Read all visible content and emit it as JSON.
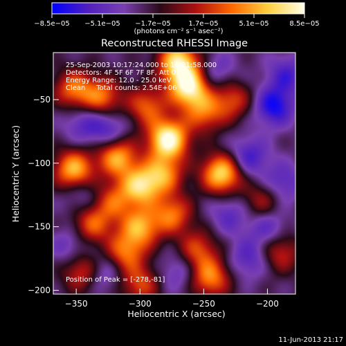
{
  "chart_data": {
    "type": "heatmap",
    "title": "Reconstructed RHESSI Image",
    "xlabel": "Heliocentric X (arcsec)",
    "ylabel": "Heliocentric Y (arcsec)",
    "xlim": [
      -368,
      -178
    ],
    "ylim": [
      -203,
      -13
    ],
    "x_ticks": [
      -350,
      -300,
      -250,
      -200
    ],
    "y_ticks": [
      -50,
      -100,
      -150,
      -200
    ],
    "x_tick_labels": [
      "−350",
      "−300",
      "−250",
      "−200"
    ],
    "y_tick_labels": [
      "−50",
      "−100",
      "−150",
      "−200"
    ],
    "colorbar": {
      "range": [
        -8.5e-05,
        8.5e-05
      ],
      "tick_labels": [
        "−8.5e−05",
        "−5.1e−05",
        "−1.7e−05",
        "1.7e−05",
        "5.1e−05",
        "8.5e−05"
      ],
      "label": "(photons cm⁻² s⁻¹ asec⁻²)",
      "colors": [
        "#0000ff",
        "#5020c0",
        "#7a3fb0",
        "#2a0a18",
        "#b01010",
        "#ff6a00",
        "#ffd040",
        "#ffffe8"
      ]
    },
    "annotations": [
      "25-Sep-2003 10:17:24.000 to 10:21:58.000",
      "Detectors: 4F 5F 6F 7F 8F, Att 0",
      "Energy Range: 12.0 - 25.0 keV",
      "Clean     Total counts: 2.54E+06"
    ],
    "peak_label": "Position of Peak = [-278,-81]",
    "peak_position": [
      -278,
      -81
    ],
    "grid": false,
    "bright_sources": [
      {
        "x": -278,
        "y": -81,
        "amplitude": 1.0
      },
      {
        "x": -262,
        "y": -40,
        "amplitude": 0.9
      },
      {
        "x": -270,
        "y": -20,
        "amplitude": 0.85
      },
      {
        "x": -236,
        "y": -108,
        "amplitude": 0.85
      },
      {
        "x": -300,
        "y": -118,
        "amplitude": 0.75
      },
      {
        "x": -318,
        "y": -95,
        "amplitude": 0.7
      },
      {
        "x": -352,
        "y": -105,
        "amplitude": 0.75
      },
      {
        "x": -352,
        "y": -42,
        "amplitude": 0.55
      },
      {
        "x": -330,
        "y": -48,
        "amplitude": 0.55
      },
      {
        "x": -295,
        "y": -55,
        "amplitude": 0.5
      },
      {
        "x": -250,
        "y": -60,
        "amplitude": 0.5
      },
      {
        "x": -228,
        "y": -50,
        "amplitude": 0.45
      },
      {
        "x": -300,
        "y": -150,
        "amplitude": 0.65
      },
      {
        "x": -338,
        "y": -148,
        "amplitude": 0.5
      },
      {
        "x": -312,
        "y": -170,
        "amplitude": 0.55
      },
      {
        "x": -275,
        "y": -140,
        "amplitude": 0.55
      },
      {
        "x": -255,
        "y": -168,
        "amplitude": 0.45
      },
      {
        "x": -245,
        "y": -190,
        "amplitude": 0.6
      },
      {
        "x": -300,
        "y": -195,
        "amplitude": 0.45
      },
      {
        "x": -345,
        "y": -185,
        "amplitude": 0.5
      },
      {
        "x": -282,
        "y": -108,
        "amplitude": 0.6
      },
      {
        "x": -322,
        "y": -130,
        "amplitude": 0.45
      },
      {
        "x": -190,
        "y": -170,
        "amplitude": 0.4
      },
      {
        "x": -205,
        "y": -130,
        "amplitude": 0.35
      }
    ],
    "dark_sources": [
      {
        "x": -195,
        "y": -55,
        "amplitude": 0.9
      },
      {
        "x": -215,
        "y": -95,
        "amplitude": 0.7
      },
      {
        "x": -185,
        "y": -30,
        "amplitude": 0.6
      },
      {
        "x": -200,
        "y": -150,
        "amplitude": 0.55
      },
      {
        "x": -230,
        "y": -140,
        "amplitude": 0.5
      },
      {
        "x": -215,
        "y": -175,
        "amplitude": 0.55
      },
      {
        "x": -325,
        "y": -73,
        "amplitude": 0.6
      },
      {
        "x": -345,
        "y": -68,
        "amplitude": 0.5
      },
      {
        "x": -330,
        "y": -185,
        "amplitude": 0.6
      },
      {
        "x": -270,
        "y": -185,
        "amplitude": 0.45
      },
      {
        "x": -355,
        "y": -165,
        "amplitude": 0.45
      },
      {
        "x": -345,
        "y": -125,
        "amplitude": 0.4
      },
      {
        "x": -240,
        "y": -28,
        "amplitude": 0.45
      },
      {
        "x": -188,
        "y": -115,
        "amplitude": 0.55
      }
    ]
  },
  "footer": {
    "timestamp": "11-Jun-2013 21:17"
  }
}
